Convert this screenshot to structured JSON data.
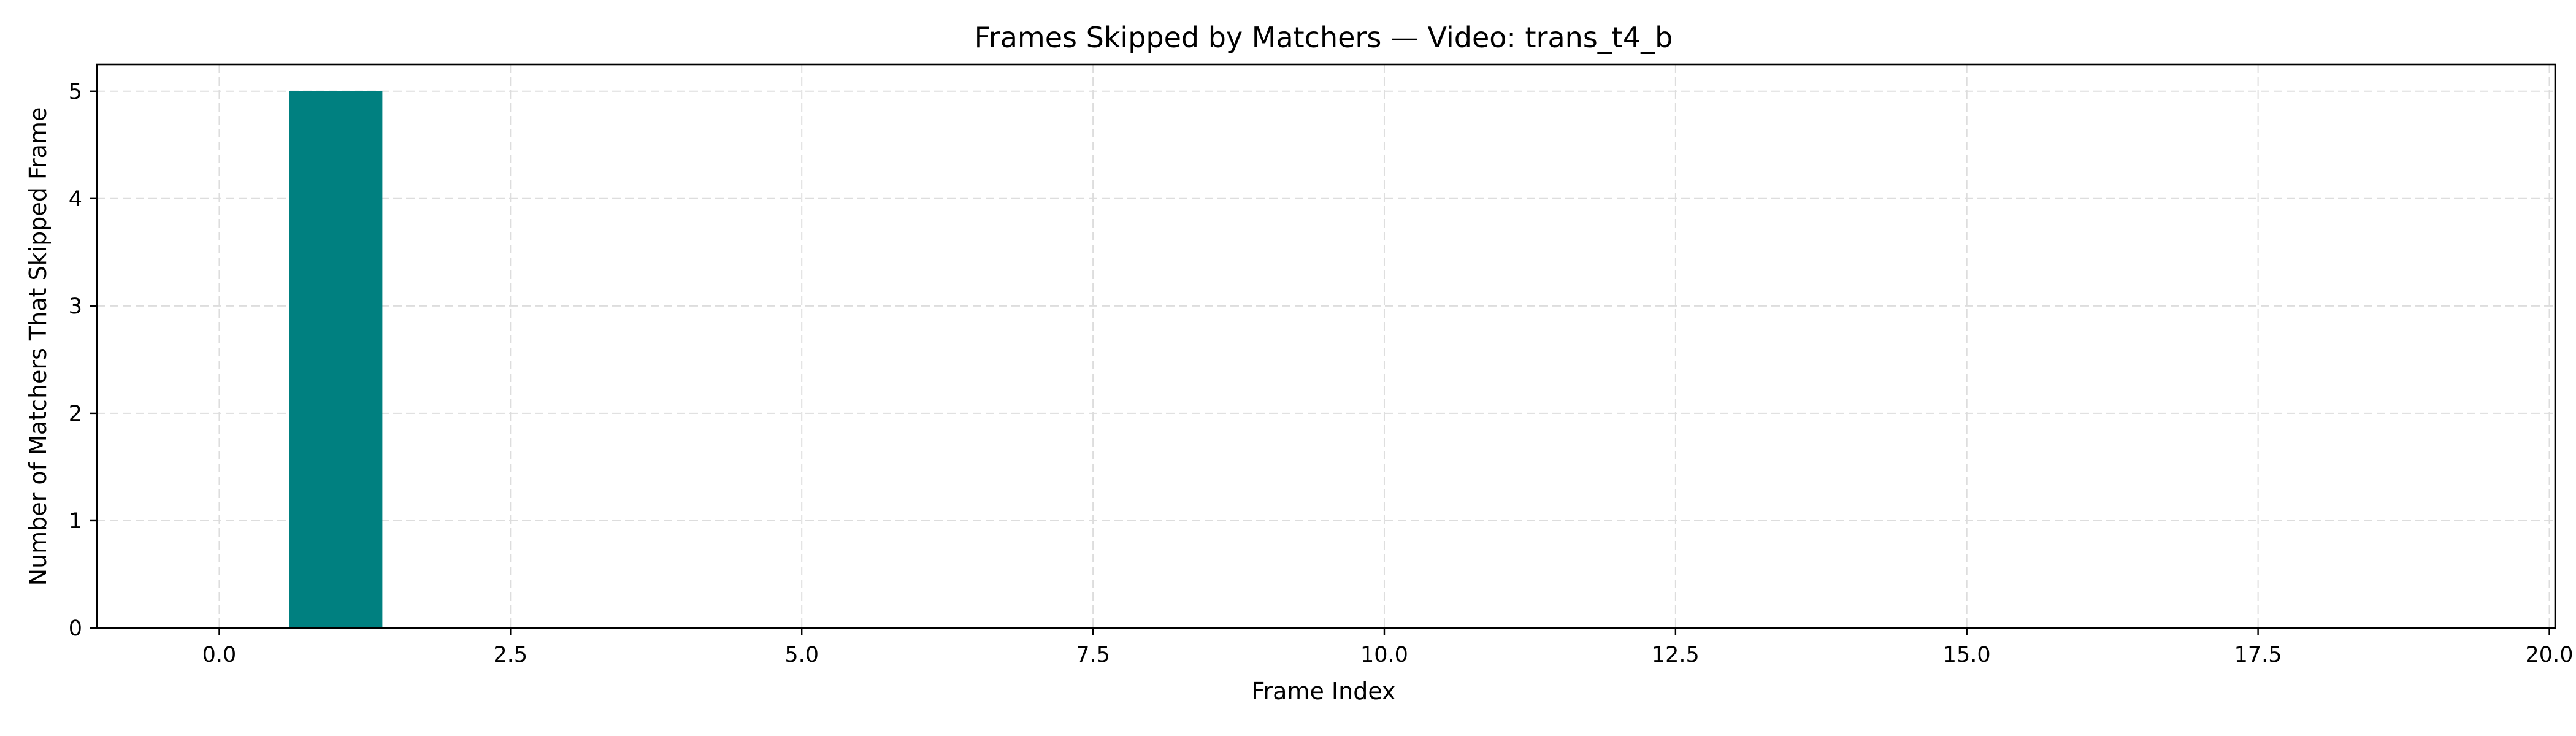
{
  "chart_data": {
    "type": "bar",
    "title": "Frames Skipped by Matchers — Video: trans_t4_b",
    "xlabel": "Frame Index",
    "ylabel": "Number of Matchers That Skipped Frame",
    "x": [
      1
    ],
    "values": [
      5
    ],
    "bar_width": 0.8,
    "xlim": [
      -1.05,
      20.05
    ],
    "ylim": [
      0,
      5.25
    ],
    "x_ticks": [
      0.0,
      2.5,
      5.0,
      7.5,
      10.0,
      12.5,
      15.0,
      17.5,
      20.0
    ],
    "x_tick_labels": [
      "0.0",
      "2.5",
      "5.0",
      "7.5",
      "10.0",
      "12.5",
      "15.0",
      "17.5",
      "20.0"
    ],
    "y_ticks": [
      0,
      1,
      2,
      3,
      4,
      5
    ],
    "y_tick_labels": [
      "0",
      "1",
      "2",
      "3",
      "4",
      "5"
    ],
    "grid": true,
    "grid_style": "dashed",
    "bar_color": "#008080",
    "grid_color": "#dddddd"
  }
}
